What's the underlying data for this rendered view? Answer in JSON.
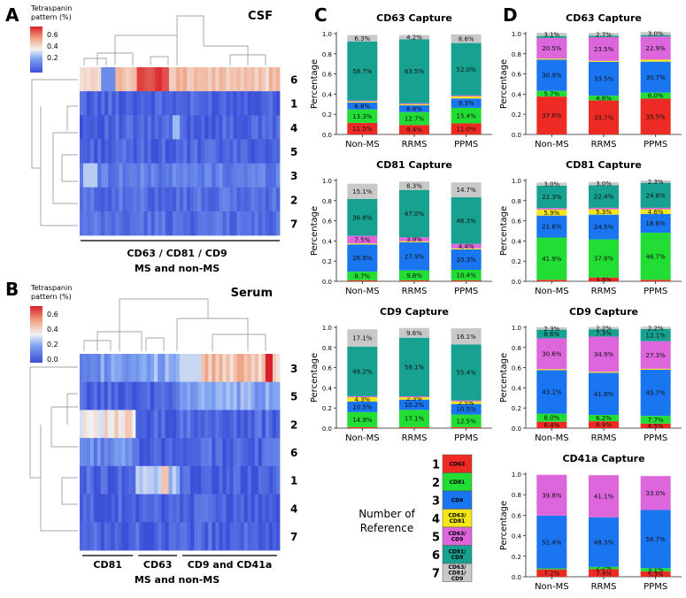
{
  "palette": {
    "r1": "#ee2a24",
    "r2": "#22dd33",
    "r3": "#1a75f0",
    "r4": "#f5e619",
    "r5": "#dd66dd",
    "r6": "#17a190",
    "r7": "#c8c8c8"
  },
  "panels": {
    "A": {
      "letter": "A",
      "title": "CSF",
      "legend_title_1": "Tetraspanin",
      "legend_title_2": "pattern (%)",
      "legend_ticks": [
        "0.6",
        "0.4",
        "0.2"
      ],
      "xlabel_1": "CD63 / CD81 / CD9",
      "xlabel_2": "MS and non-MS"
    },
    "B": {
      "letter": "B",
      "title": "Serum",
      "legend_title_1": "Tetraspanin",
      "legend_title_2": "pattern (%)",
      "legend_ticks": [
        "0.6",
        "0.4",
        "0.2",
        "0.0"
      ],
      "xlabel_2": "MS and non-MS",
      "groups": [
        "CD81",
        "CD63",
        "CD9 and CD41a"
      ]
    },
    "C": {
      "letter": "C"
    },
    "D": {
      "letter": "D"
    }
  },
  "chart_data": [
    {
      "id": "csf-heatmap",
      "type": "heatmap",
      "panel": "A",
      "row_labels": [
        "6",
        "1",
        "4",
        "5",
        "3",
        "2",
        "7"
      ],
      "row_values": [
        0.45,
        0.05,
        0.05,
        0.05,
        0.12,
        0.08,
        0.08
      ],
      "color_range": [
        0.0,
        0.7
      ],
      "xlabel": "CD63 / CD81 / CD9 — MS and non-MS"
    },
    {
      "id": "serum-heatmap",
      "type": "heatmap",
      "panel": "B",
      "row_labels": [
        "3",
        "5",
        "2",
        "6",
        "1",
        "4",
        "7"
      ],
      "color_range": [
        0.0,
        0.7
      ],
      "group_labels": [
        "CD81",
        "CD63",
        "CD9 and CD41a"
      ],
      "group_fractions": [
        0.28,
        0.22,
        0.5
      ],
      "block_values": [
        [
          0.18,
          0.22,
          0.45
        ],
        [
          0.05,
          0.05,
          0.2
        ],
        [
          0.38,
          0.04,
          0.06
        ],
        [
          0.15,
          0.04,
          0.06
        ],
        [
          0.06,
          0.25,
          0.04
        ],
        [
          0.04,
          0.04,
          0.04
        ],
        [
          0.04,
          0.04,
          0.05
        ]
      ],
      "xlabel": "MS and non-MS"
    },
    {
      "id": "C1",
      "panel": "C",
      "type": "bar",
      "stacked": true,
      "title": "CD63 Capture",
      "ylabel": "Percentage",
      "ylim": [
        0,
        1
      ],
      "yticks": [
        "0.0",
        "0.2",
        "0.4",
        "0.6",
        "0.8",
        "1.0"
      ],
      "categories": [
        "Non-MS",
        "RRMS",
        "PPMS"
      ],
      "series": [
        {
          "ref": 1,
          "values": [
            0.115,
            0.094,
            0.11
          ],
          "labels": [
            "11.5%",
            "9.4%",
            "11.0%"
          ]
        },
        {
          "ref": 2,
          "values": [
            0.133,
            0.127,
            0.154
          ],
          "labels": [
            "13.3%",
            "12.7%",
            "15.4%"
          ]
        },
        {
          "ref": 3,
          "values": [
            0.068,
            0.068,
            0.093
          ],
          "labels": [
            "6.8%",
            "6.8%",
            "9.3%"
          ]
        },
        {
          "ref": 4,
          "values": [
            0.01,
            0.01,
            0.02
          ],
          "labels": [
            "",
            "",
            ""
          ]
        },
        {
          "ref": 5,
          "values": [
            0.01,
            0.01,
            0.01
          ],
          "labels": [
            "",
            "",
            ""
          ]
        },
        {
          "ref": 6,
          "values": [
            0.587,
            0.635,
            0.52
          ],
          "labels": [
            "58.7%",
            "63.5%",
            "52.0%"
          ]
        },
        {
          "ref": 7,
          "values": [
            0.063,
            0.042,
            0.086
          ],
          "labels": [
            "6.3%",
            "4.2%",
            "8.6%"
          ]
        }
      ]
    },
    {
      "id": "C2",
      "panel": "C",
      "type": "bar",
      "stacked": true,
      "title": "CD81 Capture",
      "ylabel": "Percentage",
      "ylim": [
        0,
        1
      ],
      "yticks": [
        "0.0",
        "0.2",
        "0.4",
        "0.6",
        "0.8",
        "1.0"
      ],
      "categories": [
        "Non-MS",
        "RRMS",
        "PPMS"
      ],
      "series": [
        {
          "ref": 1,
          "values": [
            0.01,
            0.01,
            0.01
          ],
          "labels": [
            "",
            "",
            ""
          ]
        },
        {
          "ref": 2,
          "values": [
            0.087,
            0.098,
            0.104
          ],
          "labels": [
            "8.7%",
            "9.8%",
            "10.4%"
          ]
        },
        {
          "ref": 3,
          "values": [
            0.269,
            0.279,
            0.203
          ],
          "labels": [
            "26.9%",
            "27.9%",
            "20.3%"
          ]
        },
        {
          "ref": 4,
          "values": [
            0.01,
            0.01,
            0.01
          ],
          "labels": [
            "",
            "",
            ""
          ]
        },
        {
          "ref": 5,
          "values": [
            0.075,
            0.039,
            0.044
          ],
          "labels": [
            "7.5%",
            "3.9%",
            "4.4%"
          ]
        },
        {
          "ref": 6,
          "values": [
            0.366,
            0.47,
            0.463
          ],
          "labels": [
            "36.6%",
            "47.0%",
            "46.3%"
          ]
        },
        {
          "ref": 7,
          "values": [
            0.151,
            0.083,
            0.147
          ],
          "labels": [
            "15.1%",
            "8.3%",
            "14.7%"
          ]
        }
      ]
    },
    {
      "id": "C3",
      "panel": "C",
      "type": "bar",
      "stacked": true,
      "title": "CD9 Capture",
      "ylabel": "Percentage",
      "ylim": [
        0,
        1
      ],
      "yticks": [
        "0.0",
        "0.2",
        "0.4",
        "0.6",
        "0.8",
        "1.0"
      ],
      "categories": [
        "Non-MS",
        "RRMS",
        "PPMS"
      ],
      "series": [
        {
          "ref": 1,
          "values": [
            0.01,
            0.01,
            0.01
          ],
          "labels": [
            "",
            "",
            ""
          ]
        },
        {
          "ref": 2,
          "values": [
            0.149,
            0.171,
            0.125
          ],
          "labels": [
            "14.9%",
            "17.1%",
            "12.5%"
          ]
        },
        {
          "ref": 3,
          "values": [
            0.105,
            0.102,
            0.105
          ],
          "labels": [
            "10.5%",
            "10.2%",
            "10.5%"
          ]
        },
        {
          "ref": 4,
          "values": [
            0.043,
            0.023,
            0.025
          ],
          "labels": [
            "4.3%",
            "2.3%",
            "2.5%"
          ]
        },
        {
          "ref": 5,
          "values": [
            0.01,
            0.01,
            0.01
          ],
          "labels": [
            "",
            "",
            ""
          ]
        },
        {
          "ref": 6,
          "values": [
            0.492,
            0.581,
            0.554
          ],
          "labels": [
            "49.2%",
            "58.1%",
            "55.4%"
          ]
        },
        {
          "ref": 7,
          "values": [
            0.171,
            0.096,
            0.161
          ],
          "labels": [
            "17.1%",
            "9.6%",
            "16.1%"
          ]
        }
      ]
    },
    {
      "id": "D1",
      "panel": "D",
      "type": "bar",
      "stacked": true,
      "title": "CD63 Capture",
      "ylabel": "Percentage",
      "ylim": [
        0,
        1
      ],
      "yticks": [
        "0.0",
        "0.2",
        "0.4",
        "0.6",
        "0.8",
        "1.0"
      ],
      "categories": [
        "Non-MS",
        "RRMS",
        "PPMS"
      ],
      "series": [
        {
          "ref": 1,
          "values": [
            0.376,
            0.337,
            0.355
          ],
          "labels": [
            "37.6%",
            "33.7%",
            "35.5%"
          ]
        },
        {
          "ref": 2,
          "values": [
            0.057,
            0.048,
            0.06
          ],
          "labels": [
            "5.7%",
            "4.8%",
            "6.0%"
          ]
        },
        {
          "ref": 3,
          "values": [
            0.309,
            0.335,
            0.307
          ],
          "labels": [
            "30.9%",
            "33.5%",
            "30.7%"
          ]
        },
        {
          "ref": 4,
          "values": [
            0.01,
            0.01,
            0.02
          ],
          "labels": [
            "",
            "",
            ""
          ]
        },
        {
          "ref": 5,
          "values": [
            0.205,
            0.235,
            0.229
          ],
          "labels": [
            "20.5%",
            "23.5%",
            "22.9%"
          ]
        },
        {
          "ref": 6,
          "values": [
            0.02,
            0.015,
            0.015
          ],
          "labels": [
            "",
            "",
            ""
          ]
        },
        {
          "ref": 7,
          "values": [
            0.031,
            0.027,
            0.03
          ],
          "labels": [
            "3.1%",
            "2.7%",
            "3.0%"
          ]
        }
      ]
    },
    {
      "id": "D2",
      "panel": "D",
      "type": "bar",
      "stacked": true,
      "title": "CD81 Capture",
      "ylabel": "Percentage",
      "ylim": [
        0,
        1
      ],
      "yticks": [
        "0.0",
        "0.2",
        "0.4",
        "0.6",
        "0.8",
        "1.0"
      ],
      "categories": [
        "Non-MS",
        "RRMS",
        "PPMS"
      ],
      "series": [
        {
          "ref": 1,
          "values": [
            0.015,
            0.038,
            0.015
          ],
          "labels": [
            "",
            "3.8%",
            ""
          ]
        },
        {
          "ref": 2,
          "values": [
            0.419,
            0.378,
            0.467
          ],
          "labels": [
            "41.9%",
            "37.8%",
            "46.7%"
          ]
        },
        {
          "ref": 3,
          "values": [
            0.218,
            0.245,
            0.186
          ],
          "labels": [
            "21.8%",
            "24.5%",
            "18.6%"
          ]
        },
        {
          "ref": 4,
          "values": [
            0.059,
            0.053,
            0.046
          ],
          "labels": [
            "5.9%",
            "5.3%",
            "4.6%"
          ]
        },
        {
          "ref": 5,
          "values": [
            0.015,
            0.015,
            0.015
          ],
          "labels": [
            "",
            "",
            ""
          ]
        },
        {
          "ref": 6,
          "values": [
            0.223,
            0.224,
            0.248
          ],
          "labels": [
            "22.3%",
            "22.4%",
            "24.8%"
          ]
        },
        {
          "ref": 7,
          "values": [
            0.03,
            0.03,
            0.023
          ],
          "labels": [
            "3.0%",
            "3.0%",
            "2.3%"
          ]
        }
      ]
    },
    {
      "id": "D3",
      "panel": "D",
      "type": "bar",
      "stacked": true,
      "title": "CD9 Capture",
      "ylabel": "Percentage",
      "ylim": [
        0,
        1
      ],
      "yticks": [
        "0.0",
        "0.2",
        "0.4",
        "0.6",
        "0.8",
        "1.0"
      ],
      "categories": [
        "Non-MS",
        "RRMS",
        "PPMS"
      ],
      "series": [
        {
          "ref": 1,
          "values": [
            0.064,
            0.069,
            0.045
          ],
          "labels": [
            "6.4%",
            "6.9%",
            "4.5%"
          ]
        },
        {
          "ref": 2,
          "values": [
            0.08,
            0.062,
            0.077
          ],
          "labels": [
            "8.0%",
            "6.2%",
            "7.7%"
          ]
        },
        {
          "ref": 3,
          "values": [
            0.431,
            0.418,
            0.457
          ],
          "labels": [
            "43.1%",
            "41.8%",
            "45.7%"
          ]
        },
        {
          "ref": 4,
          "values": [
            0.01,
            0.01,
            0.01
          ],
          "labels": [
            "",
            "",
            ""
          ]
        },
        {
          "ref": 5,
          "values": [
            0.306,
            0.349,
            0.273
          ],
          "labels": [
            "30.6%",
            "34.9%",
            "27.3%"
          ]
        },
        {
          "ref": 6,
          "values": [
            0.086,
            0.073,
            0.121
          ],
          "labels": [
            "8.6%",
            "7.3%",
            "12.1%"
          ]
        },
        {
          "ref": 7,
          "values": [
            0.023,
            0.022,
            0.022
          ],
          "labels": [
            "2.3%",
            "2.2%",
            "2.2%"
          ]
        }
      ]
    },
    {
      "id": "D4",
      "panel": "D",
      "type": "bar",
      "stacked": true,
      "title": "CD41a Capture",
      "ylabel": "Percentage",
      "ylim": [
        0,
        1
      ],
      "yticks": [
        "0.0",
        "0.2",
        "0.4",
        "0.6",
        "0.8",
        "1.0"
      ],
      "categories": [
        "Non-MS",
        "RRMS",
        "PPMS"
      ],
      "series": [
        {
          "ref": 1,
          "values": [
            0.072,
            0.074,
            0.053
          ],
          "labels": [
            "7.2%",
            "7.4%",
            "5.3%"
          ]
        },
        {
          "ref": 2,
          "values": [
            0.01,
            0.022,
            0.031
          ],
          "labels": [
            "",
            "2.2%",
            "3.1%"
          ]
        },
        {
          "ref": 3,
          "values": [
            0.514,
            0.483,
            0.567
          ],
          "labels": [
            "51.4%",
            "48.3%",
            "56.7%"
          ]
        },
        {
          "ref": 4,
          "values": [
            0.0,
            0.0,
            0.0
          ],
          "labels": [
            "",
            "",
            ""
          ]
        },
        {
          "ref": 5,
          "values": [
            0.398,
            0.411,
            0.33
          ],
          "labels": [
            "39.8%",
            "41.1%",
            "33.0%"
          ]
        },
        {
          "ref": 6,
          "values": [
            0.0,
            0.0,
            0.0
          ],
          "labels": [
            "",
            "",
            ""
          ]
        },
        {
          "ref": 7,
          "values": [
            0.0,
            0.0,
            0.0
          ],
          "labels": [
            "",
            "",
            ""
          ]
        }
      ]
    }
  ],
  "reference_legend": {
    "title_1": "Number of",
    "title_2": "Reference",
    "items": [
      {
        "num": "1",
        "label_1": "CD63",
        "label_2": "",
        "label_3": "",
        "color_key": "r1"
      },
      {
        "num": "2",
        "label_1": "CD81",
        "label_2": "",
        "label_3": "",
        "color_key": "r2"
      },
      {
        "num": "3",
        "label_1": "CD9",
        "label_2": "",
        "label_3": "",
        "color_key": "r3"
      },
      {
        "num": "4",
        "label_1": "CD63/",
        "label_2": "CD81",
        "label_3": "",
        "color_key": "r4"
      },
      {
        "num": "5",
        "label_1": "CD63/",
        "label_2": "CD9",
        "label_3": "",
        "color_key": "r5"
      },
      {
        "num": "6",
        "label_1": "CD81/",
        "label_2": "CD9",
        "label_3": "",
        "color_key": "r6"
      },
      {
        "num": "7",
        "label_1": "CD63/",
        "label_2": "CD81/",
        "label_3": "CD9",
        "color_key": "r7"
      }
    ]
  }
}
